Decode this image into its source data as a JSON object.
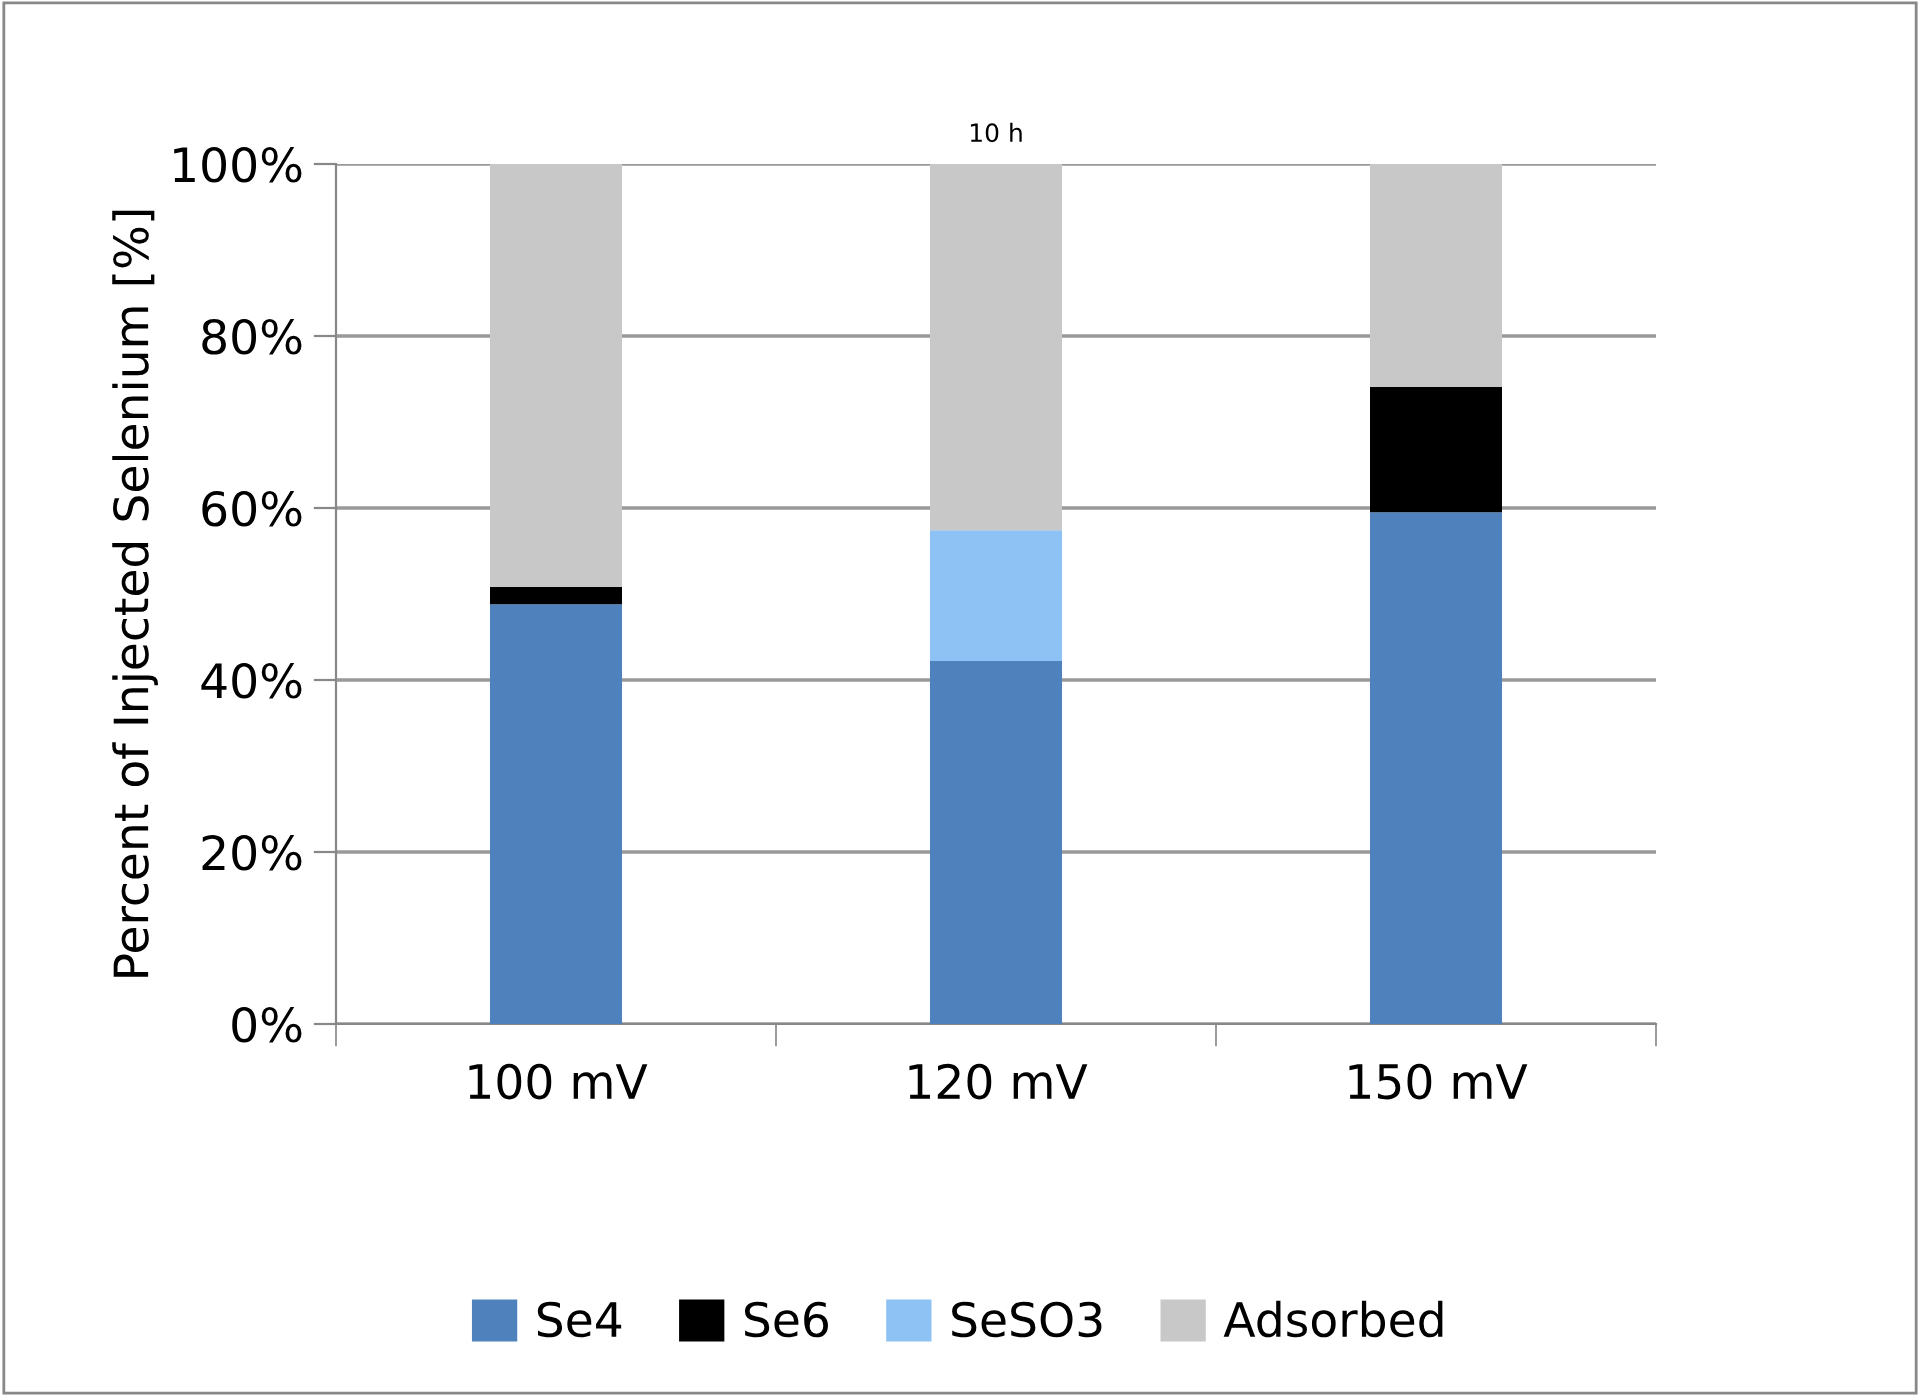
{
  "chart_data": {
    "type": "bar",
    "title": "10 h",
    "ylabel": "Percent of Injected Selenium [%]",
    "categories": [
      "100 mV",
      "120 mV",
      "150 mV"
    ],
    "stacked": true,
    "series": [
      {
        "name": "Se4",
        "color": "#4f81bd",
        "values": [
          48.8,
          42.2,
          59.5
        ]
      },
      {
        "name": "Se6",
        "color": "#000000",
        "values": [
          2.0,
          0,
          14.6
        ]
      },
      {
        "name": "SeSO3",
        "color": "#8ec2f5",
        "values": [
          0,
          15.2,
          0
        ]
      },
      {
        "name": "Adsorbed",
        "color": "#c8c8c8",
        "values": [
          49.2,
          42.6,
          25.9
        ]
      }
    ],
    "ylim": [
      0,
      100
    ],
    "yticks": [
      {
        "value": 0,
        "label": "0%"
      },
      {
        "value": 20,
        "label": "20%"
      },
      {
        "value": 40,
        "label": "40%"
      },
      {
        "value": 60,
        "label": "60%"
      },
      {
        "value": 80,
        "label": "80%"
      },
      {
        "value": 100,
        "label": "100%"
      }
    ],
    "grid": "y",
    "legend": "bottom"
  }
}
